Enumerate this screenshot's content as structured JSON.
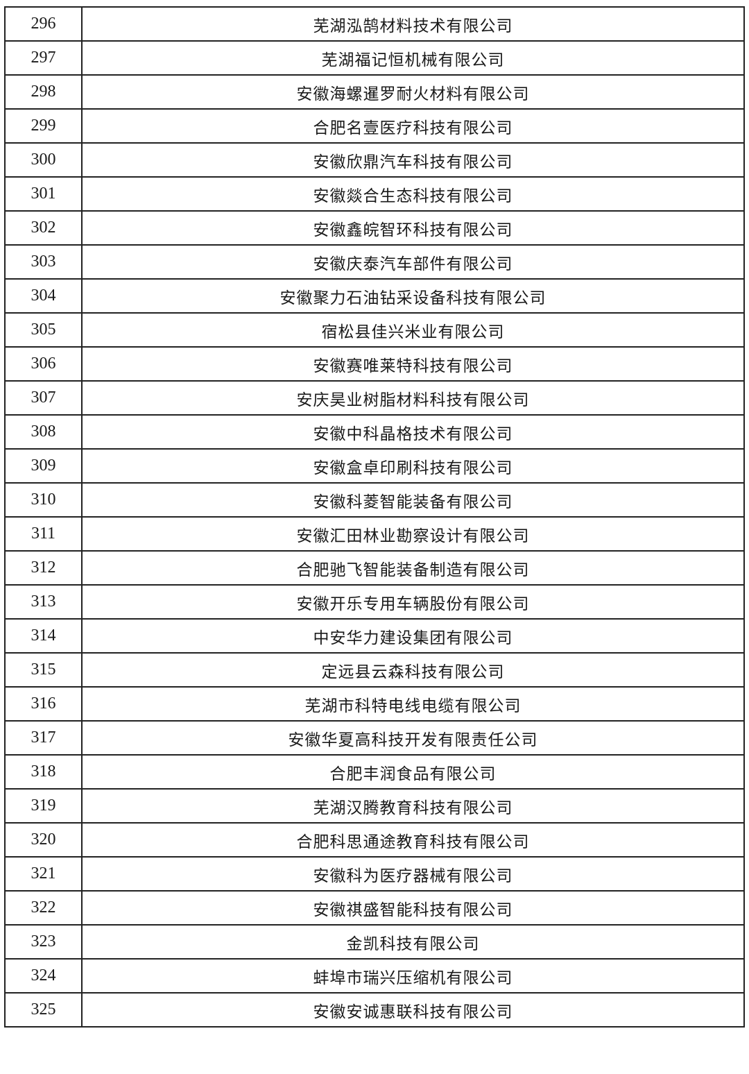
{
  "rows": [
    {
      "no": "296",
      "name": "芜湖泓鹄材料技术有限公司"
    },
    {
      "no": "297",
      "name": "芜湖福记恒机械有限公司"
    },
    {
      "no": "298",
      "name": "安徽海螺暹罗耐火材料有限公司"
    },
    {
      "no": "299",
      "name": "合肥名壹医疗科技有限公司"
    },
    {
      "no": "300",
      "name": "安徽欣鼎汽车科技有限公司"
    },
    {
      "no": "301",
      "name": "安徽燚合生态科技有限公司"
    },
    {
      "no": "302",
      "name": "安徽鑫皖智环科技有限公司"
    },
    {
      "no": "303",
      "name": "安徽庆泰汽车部件有限公司"
    },
    {
      "no": "304",
      "name": "安徽聚力石油钻采设备科技有限公司"
    },
    {
      "no": "305",
      "name": "宿松县佳兴米业有限公司"
    },
    {
      "no": "306",
      "name": "安徽赛唯莱特科技有限公司"
    },
    {
      "no": "307",
      "name": "安庆昊业树脂材料科技有限公司"
    },
    {
      "no": "308",
      "name": "安徽中科晶格技术有限公司"
    },
    {
      "no": "309",
      "name": "安徽盒卓印刷科技有限公司"
    },
    {
      "no": "310",
      "name": "安徽科菱智能装备有限公司"
    },
    {
      "no": "311",
      "name": "安徽汇田林业勘察设计有限公司"
    },
    {
      "no": "312",
      "name": "合肥驰飞智能装备制造有限公司"
    },
    {
      "no": "313",
      "name": "安徽开乐专用车辆股份有限公司"
    },
    {
      "no": "314",
      "name": "中安华力建设集团有限公司"
    },
    {
      "no": "315",
      "name": "定远县云森科技有限公司"
    },
    {
      "no": "316",
      "name": "芜湖市科特电线电缆有限公司"
    },
    {
      "no": "317",
      "name": "安徽华夏高科技开发有限责任公司"
    },
    {
      "no": "318",
      "name": "合肥丰润食品有限公司"
    },
    {
      "no": "319",
      "name": "芜湖汉腾教育科技有限公司"
    },
    {
      "no": "320",
      "name": "合肥科思通途教育科技有限公司"
    },
    {
      "no": "321",
      "name": "安徽科为医疗器械有限公司"
    },
    {
      "no": "322",
      "name": "安徽祺盛智能科技有限公司"
    },
    {
      "no": "323",
      "name": "金凯科技有限公司"
    },
    {
      "no": "324",
      "name": "蚌埠市瑞兴压缩机有限公司"
    },
    {
      "no": "325",
      "name": "安徽安诚惠联科技有限公司"
    }
  ]
}
